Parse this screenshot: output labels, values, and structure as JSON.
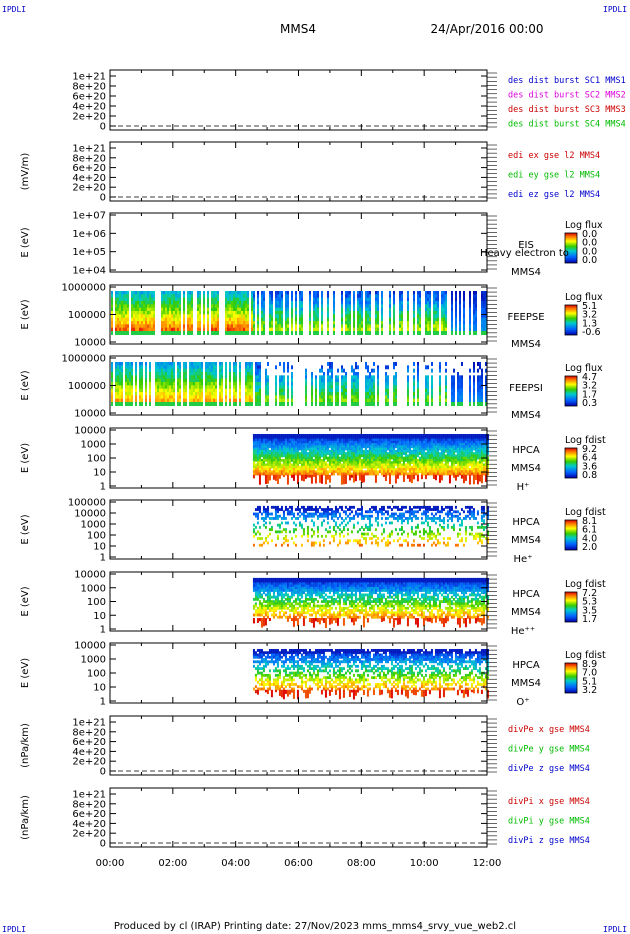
{
  "header": {
    "left_tag": "IPDLI",
    "right_tag": "IPDLI",
    "spacecraft": "MMS4",
    "datetime": "24/Apr/2016 00:00"
  },
  "footer": {
    "text": "Produced by cl (IRAP)   Printing date: 27/Nov/2023   mms_mms4_srvy_vue_web2.cl",
    "left_tag": "IPDLI",
    "right_tag": "IPDLI"
  },
  "time_axis": {
    "ticks": [
      "00:00",
      "02:00",
      "04:00",
      "06:00",
      "08:00",
      "10:00",
      "12:00"
    ],
    "range_hours": [
      0,
      12
    ]
  },
  "colors": {
    "red": "#cc0000",
    "magenta": "#dd00dd",
    "green": "#00bb00",
    "blue": "#0000cc"
  },
  "chart_data": [
    {
      "id": "p1",
      "type": "line",
      "ylabel": "",
      "y_ticks": [
        "1e+21",
        "8e+20",
        "6e+20",
        "4e+20",
        "2e+20",
        "0"
      ],
      "series": [
        {
          "name": "des dist burst SC1 MMS1",
          "color": "#0000cc"
        },
        {
          "name": "des dist burst SC2 MMS2",
          "color": "#dd00dd"
        },
        {
          "name": "des dist burst SC3 MMS3",
          "color": "#cc0000"
        },
        {
          "name": "des dist burst SC4 MMS4",
          "color": "#00bb00"
        }
      ]
    },
    {
      "id": "p2",
      "type": "line",
      "ylabel": "(mV/m)",
      "y_ticks": [
        "1e+21",
        "8e+20",
        "6e+20",
        "4e+20",
        "2e+20",
        "0"
      ],
      "series": [
        {
          "name": "edi ex gse l2 MMS4",
          "color": "#cc0000"
        },
        {
          "name": "edi ey gse l2 MMS4",
          "color": "#00bb00"
        },
        {
          "name": "edi ez gse l2 MMS4",
          "color": "#0000cc"
        }
      ]
    },
    {
      "id": "p3",
      "type": "heatmap",
      "ylabel": "E (eV)",
      "y_ticks": [
        "1e+07",
        "1e+06",
        "1e+05",
        "1e+04"
      ],
      "instrument": "EIS",
      "extra": "Heavy electron to",
      "sc": "MMS4",
      "cbar_title": "Log flux",
      "cbar_ticks": [
        "0.0",
        "0.0",
        "0.0",
        "0.0"
      ]
    },
    {
      "id": "p4",
      "type": "heatmap",
      "ylabel": "E (eV)",
      "y_ticks": [
        "1000000",
        "100000",
        "10000"
      ],
      "instrument": "FEEPSE",
      "sc": "MMS4",
      "cbar_title": "Log flux",
      "cbar_ticks": [
        "5.1",
        "3.2",
        "1.3",
        "-0.6"
      ]
    },
    {
      "id": "p5",
      "type": "heatmap",
      "ylabel": "E (eV)",
      "y_ticks": [
        "1000000",
        "100000",
        "10000"
      ],
      "instrument": "FEEPSI",
      "sc": "MMS4",
      "cbar_title": "Log flux",
      "cbar_ticks": [
        "4.7",
        "3.2",
        "1.7",
        "0.3"
      ]
    },
    {
      "id": "p6",
      "type": "heatmap",
      "ylabel": "E (eV)",
      "y_ticks": [
        "10000",
        "1000",
        "100",
        "10",
        "1"
      ],
      "instrument": "HPCA",
      "sc": "MMS4",
      "species": "H⁺",
      "cbar_title": "Log fdist",
      "cbar_ticks": [
        "9.2",
        "6.4",
        "3.6",
        "0.8"
      ]
    },
    {
      "id": "p7",
      "type": "heatmap",
      "ylabel": "E (eV)",
      "y_ticks": [
        "100000",
        "10000",
        "1000",
        "100",
        "10",
        "1"
      ],
      "instrument": "HPCA",
      "sc": "MMS4",
      "species": "He⁺",
      "cbar_title": "Log fdist",
      "cbar_ticks": [
        "8.1",
        "6.1",
        "4.0",
        "2.0"
      ]
    },
    {
      "id": "p8",
      "type": "heatmap",
      "ylabel": "E (eV)",
      "y_ticks": [
        "10000",
        "1000",
        "100",
        "10",
        "1"
      ],
      "instrument": "HPCA",
      "sc": "MMS4",
      "species": "He⁺⁺",
      "cbar_title": "Log fdist",
      "cbar_ticks": [
        "7.2",
        "5.3",
        "3.5",
        "1.7"
      ]
    },
    {
      "id": "p9",
      "type": "heatmap",
      "ylabel": "E (eV)",
      "y_ticks": [
        "10000",
        "1000",
        "100",
        "10",
        "1"
      ],
      "instrument": "HPCA",
      "sc": "MMS4",
      "species": "O⁺",
      "cbar_title": "Log fdist",
      "cbar_ticks": [
        "8.9",
        "7.0",
        "5.1",
        "3.2"
      ]
    },
    {
      "id": "p10",
      "type": "line",
      "ylabel": "(nPa/km)",
      "y_ticks": [
        "1e+21",
        "8e+20",
        "6e+20",
        "4e+20",
        "2e+20",
        "0"
      ],
      "series": [
        {
          "name": "divPe x gse MMS4",
          "color": "#cc0000"
        },
        {
          "name": "divPe y gse MMS4",
          "color": "#00bb00"
        },
        {
          "name": "divPe z gse MMS4",
          "color": "#0000cc"
        }
      ]
    },
    {
      "id": "p11",
      "type": "line",
      "ylabel": "(nPa/km)",
      "y_ticks": [
        "1e+21",
        "8e+20",
        "6e+20",
        "4e+20",
        "2e+20",
        "0"
      ],
      "series": [
        {
          "name": "divPi x gse MMS4",
          "color": "#cc0000"
        },
        {
          "name": "divPi y gse MMS4",
          "color": "#00bb00"
        },
        {
          "name": "divPi z gse MMS4",
          "color": "#0000cc"
        }
      ]
    }
  ]
}
